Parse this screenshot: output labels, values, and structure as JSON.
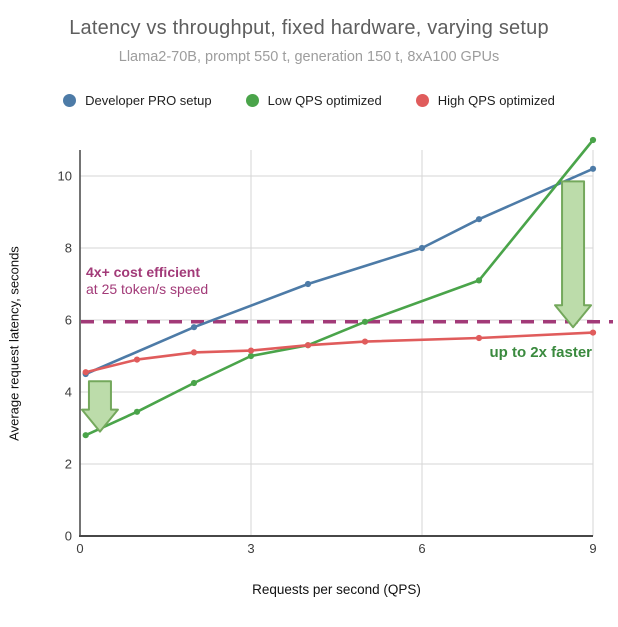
{
  "header": {
    "title": "Latency vs throughput, fixed hardware, varying setup",
    "subtitle": "Llama2-70B, prompt 550 t, generation 150 t, 8xA100 GPUs"
  },
  "chart_data": {
    "type": "line",
    "title": "Latency vs throughput, fixed hardware, varying setup",
    "subtitle": "Llama2-70B, prompt 550 t, generation 150 t, 8xA100 GPUs",
    "xlabel": "Requests per second (QPS)",
    "ylabel": "Average request latency, seconds",
    "xlim": [
      0,
      9
    ],
    "ylim": [
      0,
      11
    ],
    "x_ticks": [
      0,
      3,
      6,
      9
    ],
    "y_ticks": [
      0,
      2,
      4,
      6,
      8,
      10
    ],
    "grid": true,
    "legend_position": "top",
    "series": [
      {
        "name": "Developer PRO setup",
        "color": "#4d7ba7",
        "x": [
          0.1,
          2,
          4,
          6,
          7,
          9
        ],
        "y": [
          4.5,
          5.8,
          7.0,
          8.0,
          8.8,
          10.2
        ]
      },
      {
        "name": "Low QPS optimized",
        "color": "#4aa44a",
        "x": [
          0.1,
          1,
          2,
          3,
          4,
          5,
          7,
          9
        ],
        "y": [
          2.8,
          3.45,
          4.25,
          5.0,
          5.3,
          5.95,
          7.1,
          11.0
        ]
      },
      {
        "name": "High QPS optimized",
        "color": "#e05c5c",
        "x": [
          0.1,
          1,
          2,
          3,
          4,
          5,
          7,
          9
        ],
        "y": [
          4.55,
          4.9,
          5.1,
          5.15,
          5.3,
          5.4,
          5.5,
          5.65
        ]
      }
    ],
    "reference_line": {
      "y": 5.95,
      "style": "dashed",
      "color": "#a23a78"
    },
    "annotations": [
      {
        "text": "4x+ cost efficient",
        "subtext": "at 25 token/s speed",
        "color": "#a23a78",
        "x": 0.15,
        "y": 7.0
      },
      {
        "text": "up to 2x faster",
        "subtext": "",
        "color": "#3a8a3e",
        "x": 6.6,
        "y": 5.1
      }
    ],
    "arrows": [
      {
        "x": 0.35,
        "from_y": 4.3,
        "to_y": 2.9,
        "fill": "#bcdcaa",
        "stroke": "#74a85c"
      },
      {
        "x": 8.65,
        "from_y": 9.85,
        "to_y": 5.8,
        "fill": "#bcdcaa",
        "stroke": "#74a85c"
      }
    ],
    "axis_color": "#474747",
    "gridline_color": "#d6d6d6",
    "tick_label_color": "#3c3c3c"
  }
}
